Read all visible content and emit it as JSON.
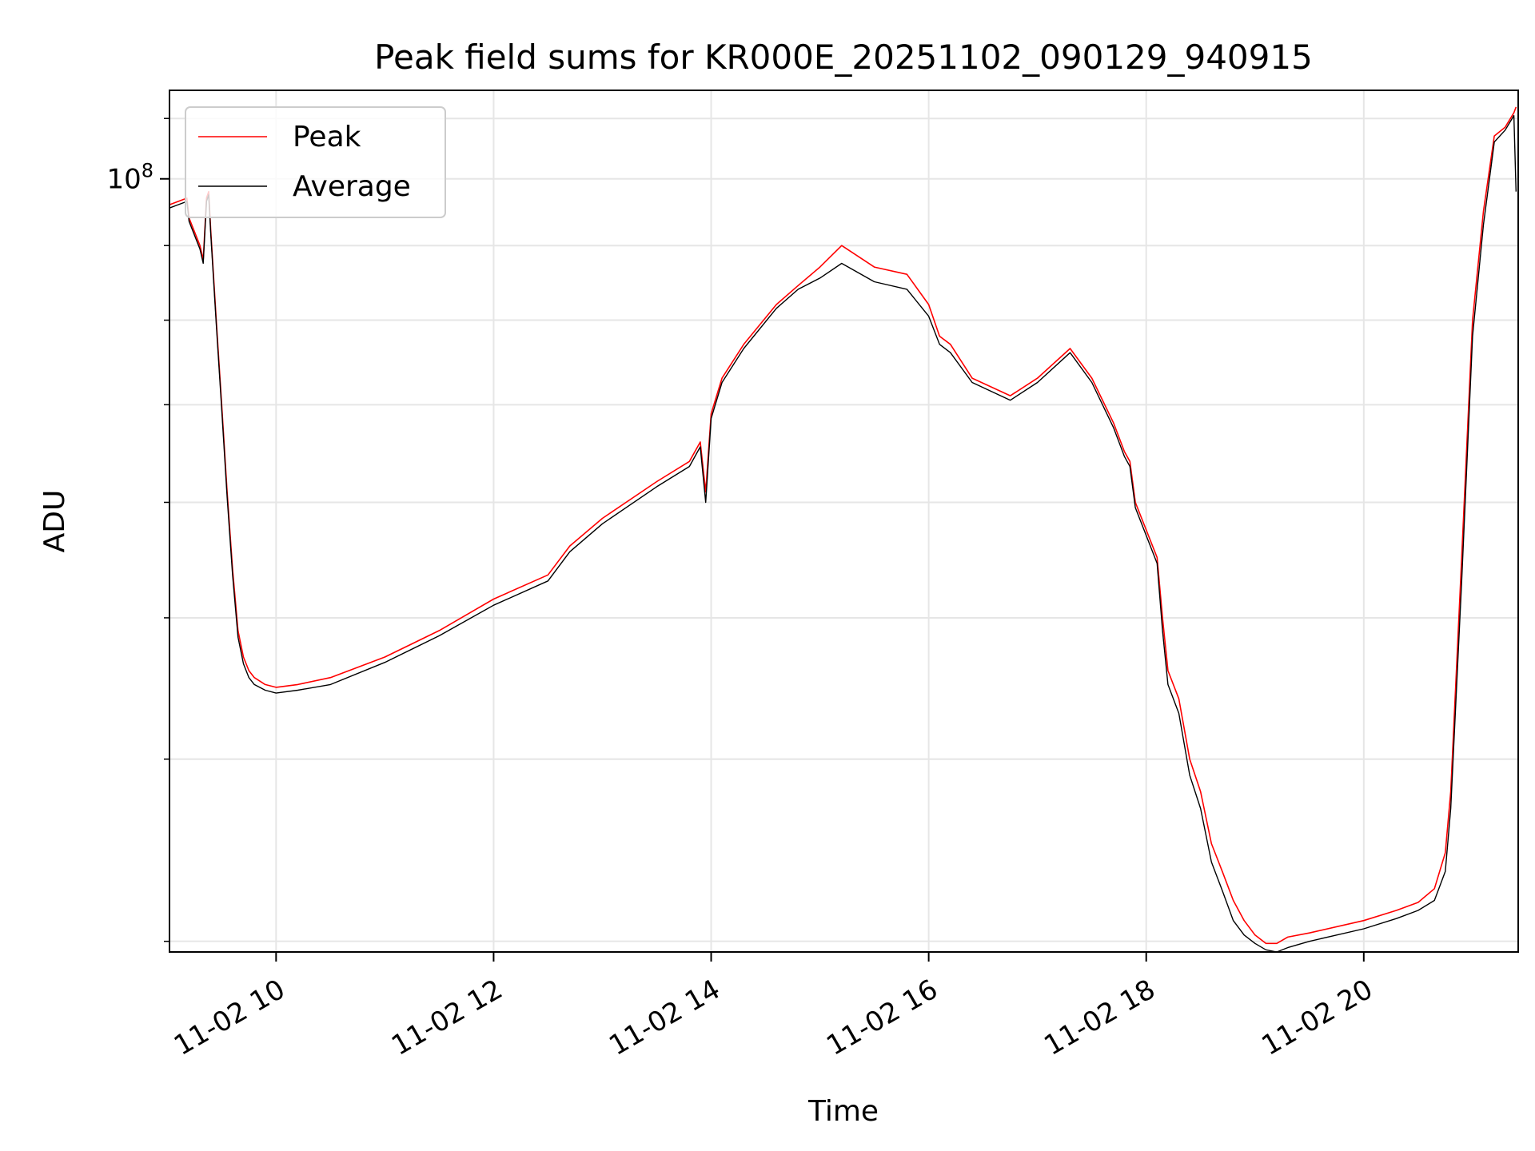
{
  "chart_data": {
    "type": "line",
    "title": "Peak field sums for KR000E_20251102_090129_940915",
    "xlabel": "Time",
    "ylabel": "ADU",
    "yscale": "log",
    "x_unit": "hours of 2025-11-02",
    "xlim": [
      9.02,
      21.42
    ],
    "ylim": [
      29500000,
      115000000
    ],
    "x_tick_labels": [
      {
        "x": 10,
        "label": "11-02 10"
      },
      {
        "x": 12,
        "label": "11-02 12"
      },
      {
        "x": 14,
        "label": "11-02 14"
      },
      {
        "x": 16,
        "label": "11-02 16"
      },
      {
        "x": 18,
        "label": "11-02 18"
      },
      {
        "x": 20,
        "label": "11-02 20"
      }
    ],
    "y_tick_major": {
      "value": 100000000,
      "base": "10",
      "exp": "8"
    },
    "y_minor_ticks": [
      30000000,
      40000000,
      50000000,
      60000000,
      70000000,
      80000000,
      90000000
    ],
    "grid": true,
    "legend": {
      "position": "top-left",
      "entries": [
        {
          "label": "Peak",
          "color": "#ff0000"
        },
        {
          "label": "Average",
          "color": "#000000"
        }
      ]
    },
    "series": [
      {
        "name": "Peak",
        "color": "#ff0000",
        "x": [
          9.02,
          9.1,
          9.18,
          9.2,
          9.3,
          9.33,
          9.36,
          9.38,
          9.4,
          9.45,
          9.5,
          9.55,
          9.6,
          9.65,
          9.7,
          9.75,
          9.8,
          9.9,
          10.0,
          10.2,
          10.5,
          11.0,
          11.5,
          12.0,
          12.5,
          12.7,
          13.0,
          13.5,
          13.8,
          13.9,
          13.95,
          14.0,
          14.1,
          14.3,
          14.6,
          14.8,
          15.0,
          15.2,
          15.5,
          15.8,
          16.0,
          16.1,
          16.2,
          16.4,
          16.75,
          17.0,
          17.3,
          17.5,
          17.7,
          17.8,
          17.85,
          17.9,
          18.1,
          18.15,
          18.2,
          18.3,
          18.4,
          18.5,
          18.6,
          18.7,
          18.8,
          18.9,
          19.0,
          19.1,
          19.2,
          19.3,
          19.5,
          20.0,
          20.3,
          20.5,
          20.65,
          20.75,
          20.8,
          20.9,
          21.0,
          21.1,
          21.2,
          21.3,
          21.38,
          21.4
        ],
        "y": [
          96000000,
          96500000,
          97000000,
          94000000,
          90000000,
          88000000,
          97000000,
          98000000,
          92000000,
          80000000,
          70000000,
          61000000,
          54000000,
          49000000,
          47000000,
          46000000,
          45500000,
          45000000,
          44800000,
          45000000,
          45500000,
          47000000,
          49000000,
          51500000,
          53500000,
          56000000,
          58500000,
          62000000,
          64000000,
          66000000,
          61000000,
          69000000,
          73000000,
          77000000,
          82000000,
          84500000,
          87000000,
          90000000,
          87000000,
          86000000,
          82000000,
          78000000,
          77000000,
          73000000,
          71000000,
          73000000,
          76500000,
          73000000,
          68000000,
          65000000,
          64000000,
          60000000,
          55000000,
          50000000,
          46000000,
          44000000,
          40000000,
          38000000,
          35000000,
          33500000,
          32000000,
          31000000,
          30300000,
          29900000,
          29900000,
          30200000,
          30400000,
          31000000,
          31500000,
          31900000,
          32600000,
          34500000,
          38000000,
          55000000,
          80000000,
          95000000,
          107000000,
          108500000,
          111000000,
          112000000
        ]
      },
      {
        "name": "Average",
        "color": "#000000",
        "x": [
          9.02,
          9.1,
          9.18,
          9.2,
          9.3,
          9.33,
          9.36,
          9.38,
          9.4,
          9.45,
          9.5,
          9.55,
          9.6,
          9.65,
          9.7,
          9.75,
          9.8,
          9.9,
          10.0,
          10.2,
          10.5,
          11.0,
          11.5,
          12.0,
          12.5,
          12.7,
          13.0,
          13.5,
          13.8,
          13.9,
          13.95,
          14.0,
          14.1,
          14.3,
          14.6,
          14.8,
          15.0,
          15.2,
          15.5,
          15.8,
          16.0,
          16.1,
          16.2,
          16.4,
          16.75,
          17.0,
          17.3,
          17.5,
          17.7,
          17.8,
          17.85,
          17.9,
          18.1,
          18.15,
          18.2,
          18.3,
          18.4,
          18.5,
          18.6,
          18.7,
          18.8,
          18.9,
          19.0,
          19.1,
          19.2,
          19.3,
          19.5,
          20.0,
          20.3,
          20.5,
          20.65,
          20.75,
          20.8,
          20.9,
          21.0,
          21.1,
          21.2,
          21.3,
          21.38,
          21.4
        ],
        "y": [
          95500000,
          96000000,
          96500000,
          93500000,
          89500000,
          87500000,
          96500000,
          97500000,
          91500000,
          79500000,
          69500000,
          60500000,
          53500000,
          48500000,
          46500000,
          45500000,
          45000000,
          44600000,
          44400000,
          44600000,
          45000000,
          46600000,
          48600000,
          51000000,
          53000000,
          55500000,
          58000000,
          61500000,
          63500000,
          65500000,
          60000000,
          68500000,
          72500000,
          76500000,
          81500000,
          84000000,
          85500000,
          87500000,
          85000000,
          84000000,
          80500000,
          77000000,
          76000000,
          72500000,
          70500000,
          72500000,
          76000000,
          72500000,
          67500000,
          64500000,
          63500000,
          59500000,
          54500000,
          49000000,
          45000000,
          43000000,
          39000000,
          37000000,
          34000000,
          32500000,
          31000000,
          30300000,
          29900000,
          29600000,
          29500000,
          29700000,
          30000000,
          30600000,
          31100000,
          31500000,
          32000000,
          33500000,
          37000000,
          53000000,
          78000000,
          93000000,
          106000000,
          108000000,
          110500000,
          98000000
        ]
      }
    ]
  }
}
